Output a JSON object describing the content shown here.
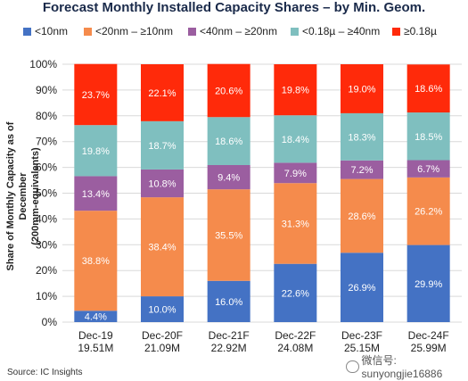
{
  "chart_data": {
    "type": "bar",
    "stacked": true,
    "title": "Forecast Monthly Installed Capacity Shares – by Min. Geom.",
    "ylabel_line1": "Share of Monthly Capacity as of December",
    "ylabel_line2": "(200mm-equivalents)",
    "ylim": [
      0,
      100
    ],
    "yticks": [
      "0%",
      "10%",
      "20%",
      "30%",
      "40%",
      "50%",
      "60%",
      "70%",
      "80%",
      "90%",
      "100%"
    ],
    "categories": [
      "Dec-19",
      "Dec-20F",
      "Dec-21F",
      "Dec-22F",
      "Dec-23F",
      "Dec-24F"
    ],
    "category_sublabels": [
      "19.51M",
      "21.09M",
      "22.92M",
      "24.08M",
      "25.15M",
      "25.99M"
    ],
    "series": [
      {
        "name": "<10nm",
        "color": "#4472c4",
        "values": [
          4.4,
          10.0,
          16.0,
          22.6,
          26.9,
          29.9
        ],
        "labels": [
          "4.4%",
          "10.0%",
          "16.0%",
          "22.6%",
          "26.9%",
          "29.9%"
        ]
      },
      {
        "name": "<20nm – ≥10nm",
        "color": "#f58b4c",
        "values": [
          38.8,
          38.4,
          35.5,
          31.3,
          28.6,
          26.2
        ],
        "labels": [
          "38.8%",
          "38.4%",
          "35.5%",
          "31.3%",
          "28.6%",
          "26.2%"
        ]
      },
      {
        "name": "<40nm – ≥20nm",
        "color": "#9b5ea0",
        "values": [
          13.4,
          10.8,
          9.4,
          7.9,
          7.2,
          6.7
        ],
        "labels": [
          "13.4%",
          "10.8%",
          "9.4%",
          "7.9%",
          "7.2%",
          "6.7%"
        ]
      },
      {
        "name": "<0.18µ – ≥40nm",
        "color": "#7fbfbf",
        "values": [
          19.8,
          18.7,
          18.6,
          18.4,
          18.3,
          18.5
        ],
        "labels": [
          "19.8%",
          "18.7%",
          "18.6%",
          "18.4%",
          "18.3%",
          "18.5%"
        ]
      },
      {
        "name": "≥0.18µ",
        "color": "#ff2a0a",
        "values": [
          23.7,
          22.1,
          20.6,
          19.8,
          19.0,
          18.6
        ],
        "labels": [
          "23.7%",
          "22.1%",
          "20.6%",
          "19.8%",
          "19.0%",
          "18.6%"
        ]
      }
    ],
    "grid": true,
    "legend_position": "top"
  },
  "source": "Source:  IC Insights",
  "watermark": "微信号: sunyongjie16886"
}
